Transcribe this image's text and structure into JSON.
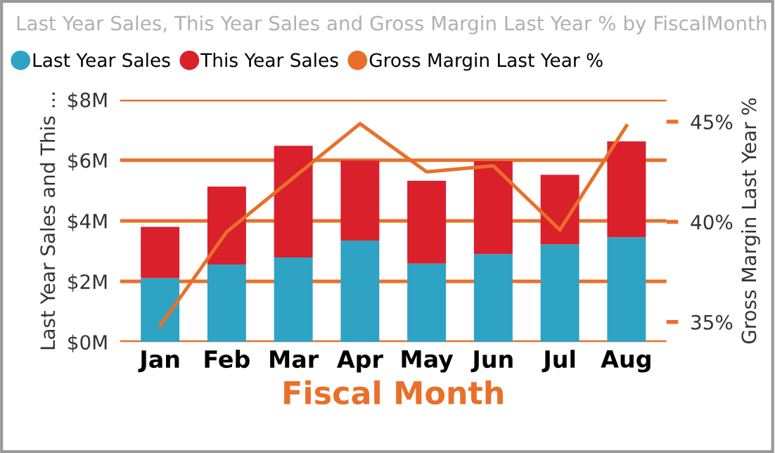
{
  "chart_data": {
    "type": "bar",
    "title": "Last Year Sales, This Year Sales and Gross Margin Last Year % by FiscalMonth",
    "xlabel": "Fiscal Month",
    "ylabel": "Last Year Sales and This ...",
    "y2label": "Gross Margin Last Year %",
    "categories": [
      "Jan",
      "Feb",
      "Mar",
      "Apr",
      "May",
      "Jun",
      "Jul",
      "Aug"
    ],
    "stacked": true,
    "series": [
      {
        "name": "Last Year Sales",
        "color": "#2ea3c4",
        "values": [
          2.11,
          2.56,
          2.79,
          3.35,
          2.59,
          2.9,
          3.22,
          3.46
        ]
      },
      {
        "name": "This Year Sales",
        "color": "#d9202b",
        "values": [
          1.69,
          2.57,
          3.69,
          2.64,
          2.73,
          3.07,
          2.3,
          3.16
        ]
      },
      {
        "name": "Gross Margin Last Year %",
        "color": "#e8702a",
        "type": "line",
        "axis": "y2",
        "values": [
          34.8,
          39.5,
          42.2,
          44.9,
          42.5,
          42.8,
          39.6,
          44.8
        ]
      }
    ],
    "ylim": [
      0,
      8
    ],
    "yticks": [
      {
        "value": 0,
        "label": "$0M"
      },
      {
        "value": 2,
        "label": "$2M"
      },
      {
        "value": 4,
        "label": "$4M"
      },
      {
        "value": 6,
        "label": "$6M"
      },
      {
        "value": 8,
        "label": "$8M"
      }
    ],
    "y2lim": [
      34.0,
      46.1
    ],
    "y2ticks": [
      {
        "value": 35,
        "label": "35%"
      },
      {
        "value": 40,
        "label": "40%"
      },
      {
        "value": 45,
        "label": "45%"
      }
    ],
    "grid": "y",
    "legend": "top left"
  }
}
